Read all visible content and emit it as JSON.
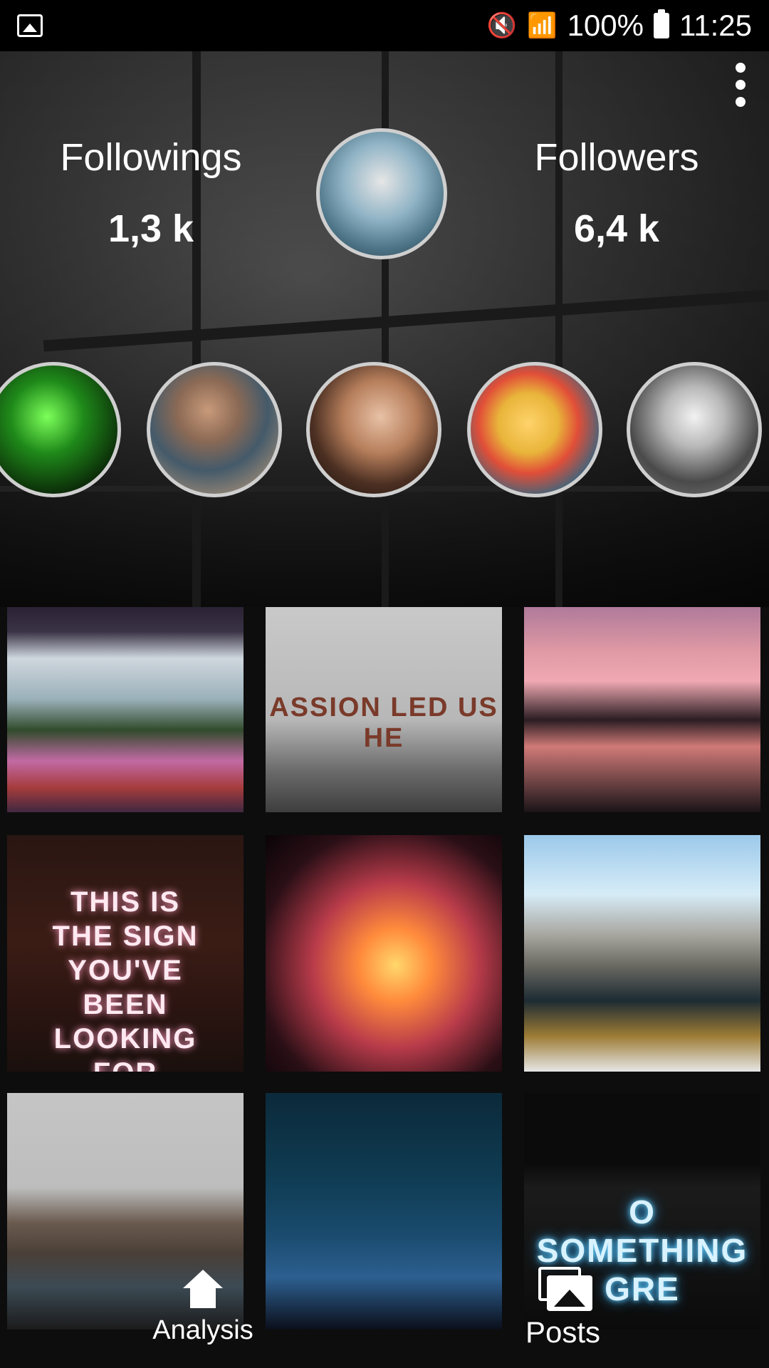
{
  "status_bar": {
    "battery": "100%",
    "time": "11:25"
  },
  "profile": {
    "followings_label": "Followings",
    "followings_value": "1,3 k",
    "followers_label": "Followers",
    "followers_value": "6,4 k"
  },
  "posts": [
    {
      "caption": ""
    },
    {
      "caption": "ASSION LED US HE"
    },
    {
      "caption": ""
    },
    {
      "caption": "THIS IS THE SIGN YOU'VE BEEN LOOKING FOR"
    },
    {
      "caption": ""
    },
    {
      "caption": ""
    },
    {
      "caption": ""
    },
    {
      "caption": ""
    },
    {
      "caption": "O SOMETHING GRE"
    }
  ],
  "nav": {
    "analysis_label": "Analysis",
    "posts_label": "Posts"
  }
}
